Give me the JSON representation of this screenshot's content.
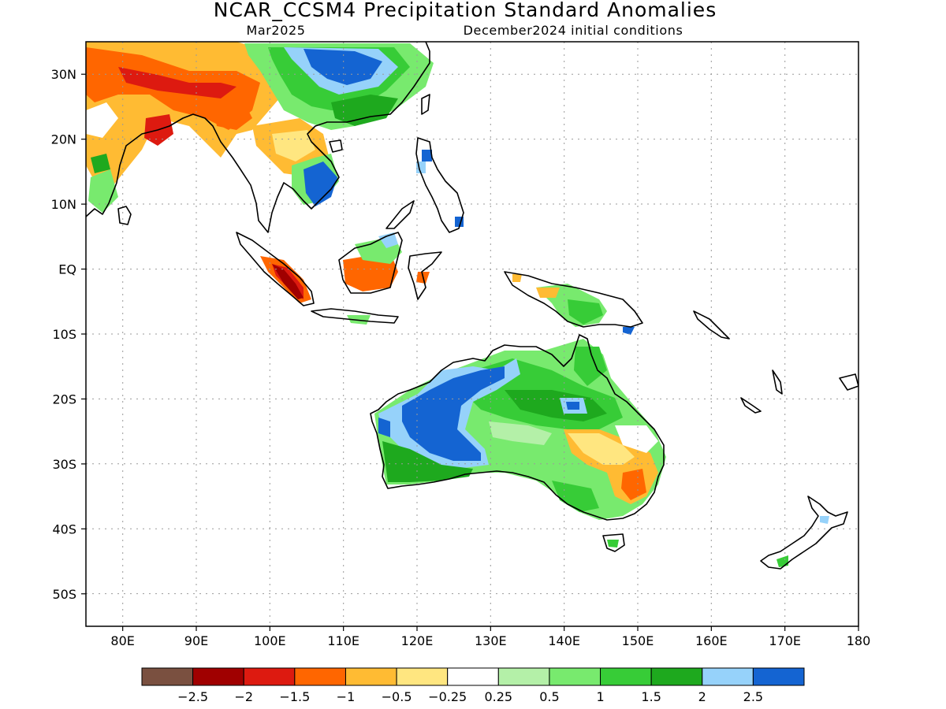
{
  "title": "NCAR_CCSM4 Precipitation Standard Anomalies",
  "valid_month": "Mar2025",
  "init_conditions": "December2024 initial conditions",
  "map": {
    "lon_range": [
      75,
      180
    ],
    "lat_range": [
      -55,
      35
    ],
    "lon_ticks": [
      {
        "lon": 80,
        "label": "80E"
      },
      {
        "lon": 90,
        "label": "90E"
      },
      {
        "lon": 100,
        "label": "100E"
      },
      {
        "lon": 110,
        "label": "110E"
      },
      {
        "lon": 120,
        "label": "120E"
      },
      {
        "lon": 130,
        "label": "130E"
      },
      {
        "lon": 140,
        "label": "140E"
      },
      {
        "lon": 150,
        "label": "150E"
      },
      {
        "lon": 160,
        "label": "160E"
      },
      {
        "lon": 170,
        "label": "170E"
      },
      {
        "lon": 180,
        "label": "180"
      }
    ],
    "lat_ticks": [
      {
        "lat": 30,
        "label": "30N"
      },
      {
        "lat": 20,
        "label": "20N"
      },
      {
        "lat": 10,
        "label": "10N"
      },
      {
        "lat": 0,
        "label": "EQ"
      },
      {
        "lat": -10,
        "label": "10S"
      },
      {
        "lat": -20,
        "label": "20S"
      },
      {
        "lat": -30,
        "label": "30S"
      },
      {
        "lat": -40,
        "label": "40S"
      },
      {
        "lat": -50,
        "label": "50S"
      }
    ]
  },
  "colorbar": {
    "colors": [
      "#7a5040",
      "#a00000",
      "#dd1a10",
      "#ff6600",
      "#ffbb33",
      "#ffe680",
      "#ffffff",
      "#b4f0a8",
      "#78ea6e",
      "#37cc37",
      "#1ea91e",
      "#96d2fa",
      "#1464d2"
    ],
    "labels": [
      "-2.5",
      "-2",
      "-1.5",
      "-1",
      "-0.5",
      "-0.25",
      "0.25",
      "0.5",
      "1",
      "1.5",
      "2",
      "2.5"
    ]
  },
  "colors": {
    "strong_dry": "#a00000",
    "dry": "#dd1a10",
    "moderate_dry": "#ff6600",
    "light_dry": "#ffbb33",
    "weak_dry": "#ffe680",
    "weak_wet": "#b4f0a8",
    "light_wet": "#78ea6e",
    "moderate_wet": "#37cc37",
    "wet": "#1ea91e",
    "very_wet": "#96d2fa",
    "extreme_wet": "#1464d2"
  }
}
